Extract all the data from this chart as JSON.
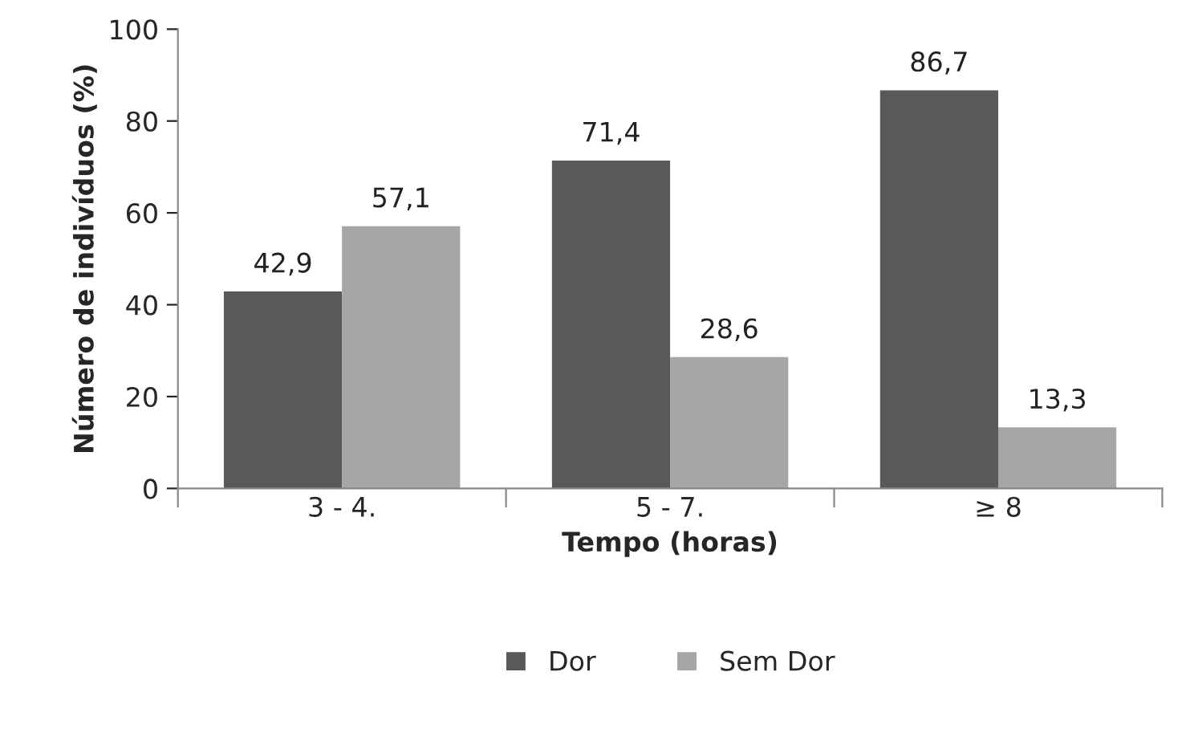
{
  "chart_data": {
    "type": "bar",
    "xlabel": "Tempo (horas)",
    "ylabel": "Número de indivíduos (%)",
    "categories": [
      "3 - 4.",
      "5 - 7.",
      "≥ 8"
    ],
    "series": [
      {
        "name": "Dor",
        "color": "#595959",
        "values": [
          42.9,
          71.4,
          86.7
        ],
        "value_labels": [
          "42,9",
          "71,4",
          "86,7"
        ]
      },
      {
        "name": "Sem Dor",
        "color": "#a6a6a6",
        "values": [
          57.1,
          28.6,
          13.3
        ],
        "value_labels": [
          "57,1",
          "28,6",
          "13,3"
        ]
      }
    ],
    "ylim": [
      0,
      100
    ],
    "yticks": [
      0,
      20,
      40,
      60,
      80,
      100
    ],
    "grid": false,
    "legend": "bottom"
  }
}
